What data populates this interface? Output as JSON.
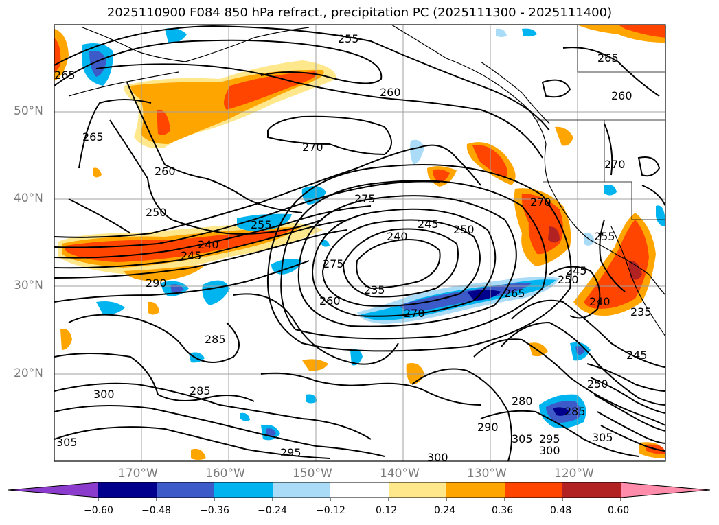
{
  "title": "2025110900 F084 850 hPa refract., precipitation PC (2025111300 - 2025111400)",
  "lat_labels": [
    "50°N",
    "40°N",
    "30°N",
    "20°N"
  ],
  "lon_labels": [
    "170°W",
    "160°W",
    "150°W",
    "140°W",
    "130°W",
    "120°W"
  ],
  "colorbar": {
    "ticks": [
      "−0.60",
      "−0.48",
      "−0.36",
      "−0.24",
      "−0.12",
      "0.12",
      "0.24",
      "0.36",
      "0.48",
      "0.60"
    ],
    "colors": [
      "#8c3ccc",
      "#00008c",
      "#3c5ac8",
      "#00b4f0",
      "#aadcf8",
      "#ffffff",
      "#ffe88c",
      "#ffa500",
      "#ff4500",
      "#b22222",
      "#ff8caa"
    ]
  },
  "contour_labels": [
    "255",
    "260",
    "265",
    "260",
    "265",
    "270",
    "260",
    "250",
    "275",
    "255",
    "240",
    "245",
    "250",
    "245",
    "240",
    "290",
    "275",
    "235",
    "265",
    "260",
    "270",
    "250",
    "245",
    "240",
    "235",
    "270",
    "270",
    "255",
    "285",
    "285",
    "300",
    "305",
    "295",
    "280",
    "290",
    "305",
    "295",
    "300",
    "300",
    "305",
    "250",
    "245",
    "285",
    "265"
  ]
}
